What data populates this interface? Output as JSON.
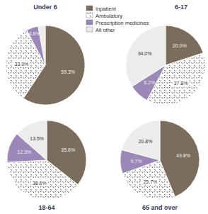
{
  "chart_data": [
    {
      "type": "pie",
      "title": "Under 6",
      "legend": "top",
      "categories": [
        "Inpatient",
        "Ambulatory",
        "Prescription medicines",
        "All other"
      ],
      "values": [
        59.3,
        33.0,
        4.8,
        2.9
      ],
      "value_labels": [
        "59.3%",
        "33.0%",
        "4.8%",
        null
      ],
      "colors": [
        "#7b6d5b",
        "#ffffff",
        "#9b87b8",
        "#ececec"
      ],
      "data_labels": true
    },
    {
      "type": "pie",
      "title": "6-17",
      "categories": [
        "Inpatient",
        "Ambulatory",
        "Prescription medicines",
        "All other"
      ],
      "values": [
        20.0,
        37.8,
        8.2,
        34.0
      ],
      "value_labels": [
        "20.0%",
        "37.8%",
        "8.2%",
        "34.0%"
      ],
      "colors": [
        "#7b6d5b",
        "#ffffff",
        "#9b87b8",
        "#ececec"
      ],
      "data_labels": true
    },
    {
      "type": "pie",
      "title": "18-64",
      "categories": [
        "Inpatient",
        "Ambulatory",
        "Prescription medicines",
        "All other"
      ],
      "values": [
        35.6,
        38.6,
        12.3,
        13.5
      ],
      "value_labels": [
        "35.6%",
        "38.6%",
        "12.3%",
        "13.5%"
      ],
      "colors": [
        "#7b6d5b",
        "#ffffff",
        "#9b87b8",
        "#ececec"
      ],
      "data_labels": true
    },
    {
      "type": "pie",
      "title": "65 and over",
      "categories": [
        "Inpatient",
        "Ambulatory",
        "Prescription medicines",
        "All other"
      ],
      "values": [
        43.8,
        25.7,
        9.7,
        20.8
      ],
      "value_labels": [
        "43.8%",
        "25.7%",
        "9.7%",
        "20.8%"
      ],
      "colors": [
        "#7b6d5b",
        "#ffffff",
        "#9b87b8",
        "#ececec"
      ],
      "data_labels": true
    }
  ]
}
